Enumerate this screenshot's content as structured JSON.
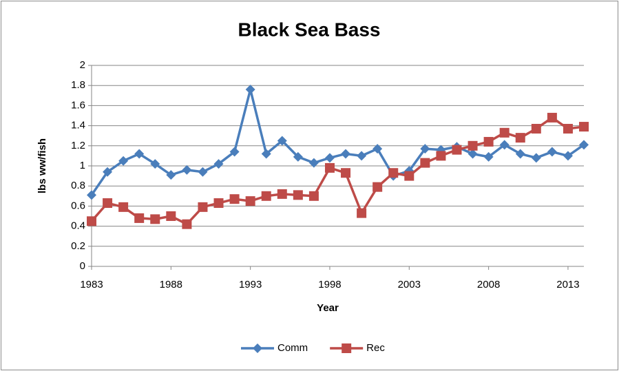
{
  "chart_data": {
    "type": "line",
    "title": "Black Sea Bass",
    "x_label": "Year",
    "y_label": "lbs ww/fish",
    "x": [
      1983,
      1984,
      1985,
      1986,
      1987,
      1988,
      1989,
      1990,
      1991,
      1992,
      1993,
      1994,
      1995,
      1996,
      1997,
      1998,
      1999,
      2000,
      2001,
      2002,
      2003,
      2004,
      2005,
      2006,
      2007,
      2008,
      2009,
      2010,
      2011,
      2012,
      2013,
      2014
    ],
    "series": [
      {
        "name": "Comm",
        "color": "#4a7ebb",
        "marker": "diamond",
        "values": [
          0.71,
          0.94,
          1.05,
          1.12,
          1.02,
          0.91,
          0.96,
          0.94,
          1.02,
          1.14,
          1.76,
          1.12,
          1.25,
          1.09,
          1.03,
          1.08,
          1.12,
          1.1,
          1.17,
          0.9,
          0.95,
          1.17,
          1.16,
          1.19,
          1.12,
          1.09,
          1.21,
          1.12,
          1.08,
          1.14,
          1.1,
          1.21
        ]
      },
      {
        "name": "Rec",
        "color": "#be4b48",
        "marker": "square",
        "values": [
          0.45,
          0.63,
          0.59,
          0.48,
          0.47,
          0.5,
          0.42,
          0.59,
          0.63,
          0.67,
          0.65,
          0.7,
          0.72,
          0.71,
          0.7,
          0.98,
          0.93,
          0.53,
          0.79,
          0.93,
          0.9,
          1.03,
          1.1,
          1.16,
          1.2,
          1.24,
          1.33,
          1.28,
          1.37,
          1.48,
          1.37,
          1.39
        ]
      }
    ],
    "xlim": [
      1983,
      2014
    ],
    "xticks": [
      1983,
      1988,
      1993,
      1998,
      2003,
      2008,
      2013
    ],
    "ylim": [
      0,
      2
    ],
    "yticks": [
      0,
      0.2,
      0.4,
      0.6,
      0.8,
      1,
      1.2,
      1.4,
      1.6,
      1.8,
      2
    ],
    "grid": true,
    "legend": "bottom"
  }
}
